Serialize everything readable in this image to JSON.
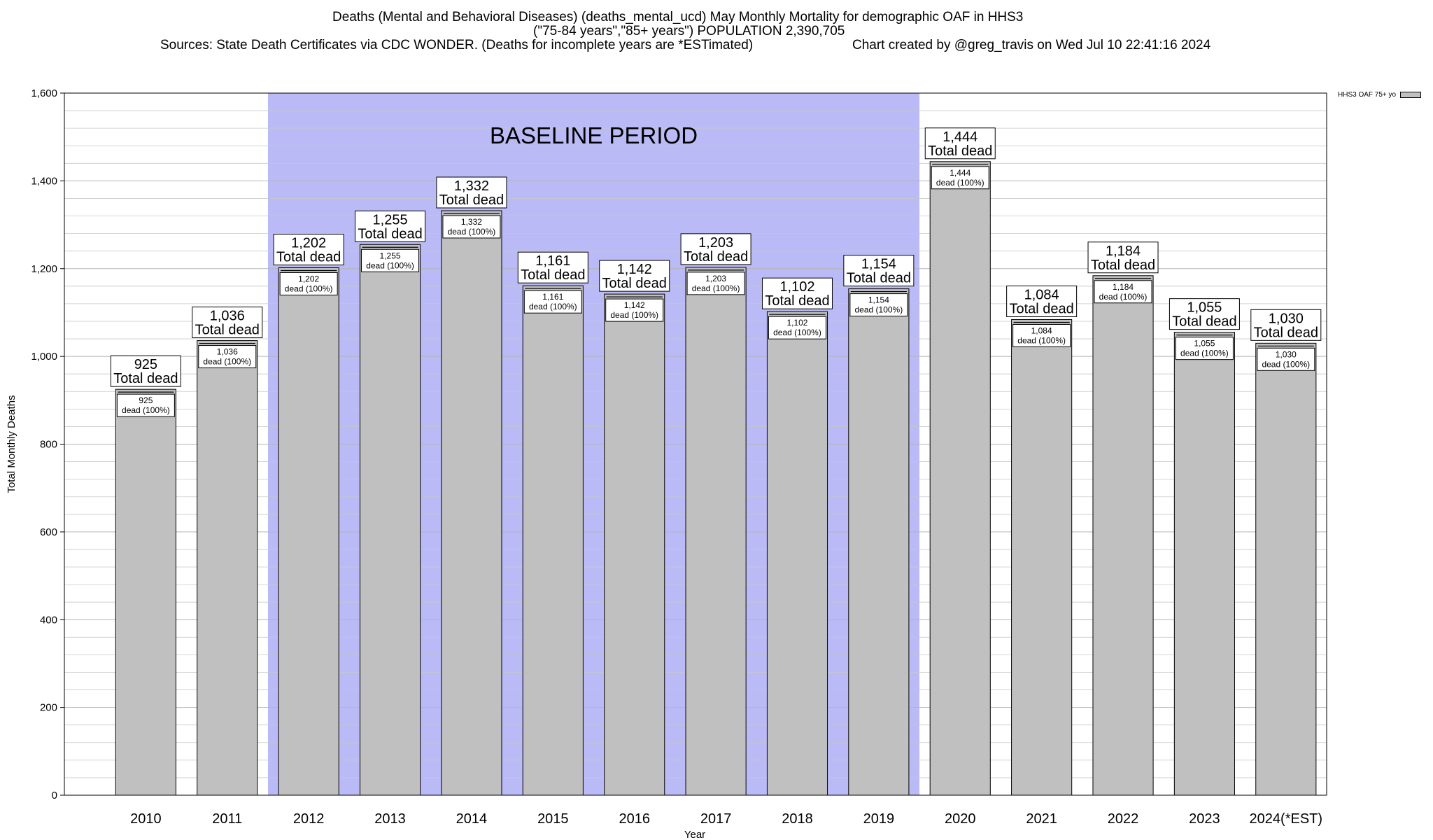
{
  "header": {
    "line1": "Deaths (Mental and Behavioral Diseases) (deaths_mental_ucd) May Monthly Mortality for demographic OAF in HHS3",
    "line2": "(\"75-84 years\",\"85+ years\") POPULATION 2,390,705",
    "line3_left": "Sources: State Death Certificates via CDC WONDER. (Deaths for incomplete years are *ESTimated)",
    "line3_right": "Chart created by @greg_travis on Wed Jul 10 22:41:16 2024"
  },
  "legend": {
    "label": "HHS3 OAF 75+ yo"
  },
  "colors": {
    "bar": "#c0c0c0",
    "baseline_band": "#babaf7",
    "grid": "#c8c8c8"
  },
  "chart_data": {
    "type": "bar",
    "title": "Deaths (Mental and Behavioral Diseases) (deaths_mental_ucd) May Monthly Mortality for demographic OAF in HHS3",
    "xlabel": "Year",
    "ylabel": "Total Monthly Deaths",
    "ylim": [
      0,
      1600
    ],
    "y_ticks": [
      0,
      200,
      400,
      600,
      800,
      1000,
      1200,
      1400,
      1600
    ],
    "y_tick_labels": [
      "0",
      "200",
      "400",
      "600",
      "800",
      "1,000",
      "1,200",
      "1,400",
      "1,600"
    ],
    "grid": true,
    "legend_position": "top-right",
    "categories": [
      "2010",
      "2011",
      "2012",
      "2013",
      "2014",
      "2015",
      "2016",
      "2017",
      "2018",
      "2019",
      "2020",
      "2021",
      "2022",
      "2023",
      "2024(*EST)"
    ],
    "series": [
      {
        "name": "HHS3 OAF 75+ yo",
        "values": [
          925,
          1036,
          1202,
          1255,
          1332,
          1161,
          1142,
          1203,
          1102,
          1154,
          1444,
          1084,
          1184,
          1055,
          1030
        ]
      }
    ],
    "value_labels": [
      "925",
      "1,036",
      "1,202",
      "1,255",
      "1,332",
      "1,161",
      "1,142",
      "1,203",
      "1,102",
      "1,154",
      "1,444",
      "1,084",
      "1,184",
      "1,055",
      "1,030"
    ],
    "total_label": "Total dead",
    "inner_label": "dead (100%)",
    "annotation": {
      "text": "BASELINE PERIOD",
      "from_category": "2012",
      "to_category": "2019"
    }
  }
}
